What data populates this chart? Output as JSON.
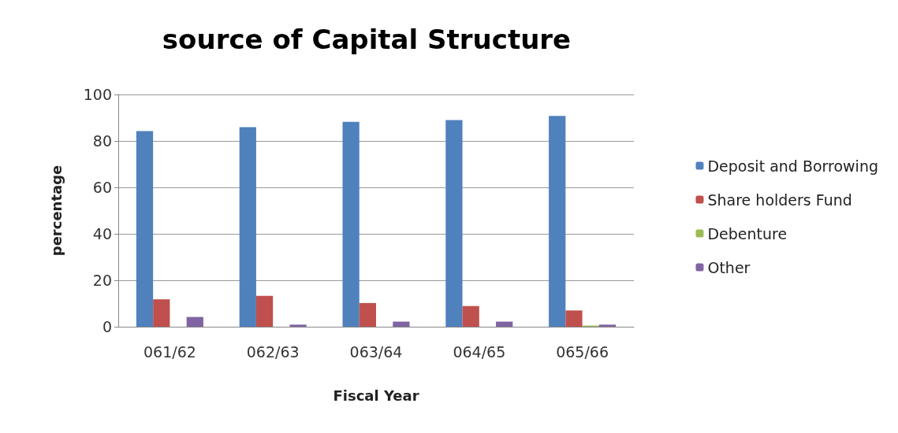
{
  "chart_data": {
    "type": "bar",
    "title": "source of Capital Structure",
    "xlabel": "Fiscal Year",
    "ylabel": "percentage",
    "categories": [
      "061/62",
      "062/63",
      "063/64",
      "064/65",
      "065/66"
    ],
    "series": [
      {
        "name": "Deposit and Borrowing",
        "color": "#4f81bd",
        "values": [
          84.2,
          85.9,
          88.2,
          89.0,
          90.8
        ]
      },
      {
        "name": "Share holders Fund",
        "color": "#c0504d",
        "values": [
          11.8,
          13.3,
          10.2,
          8.9,
          7.0
        ]
      },
      {
        "name": "Debenture",
        "color": "#9bbb59",
        "values": [
          0,
          0,
          0,
          0,
          0.5
        ]
      },
      {
        "name": "Other",
        "color": "#8064a2",
        "values": [
          4.2,
          0.9,
          2.2,
          2.2,
          0.9
        ]
      }
    ],
    "ylim": [
      0,
      100
    ],
    "yticks": [
      0,
      20,
      40,
      60,
      80,
      100
    ],
    "grid": "y",
    "legend": "right"
  }
}
